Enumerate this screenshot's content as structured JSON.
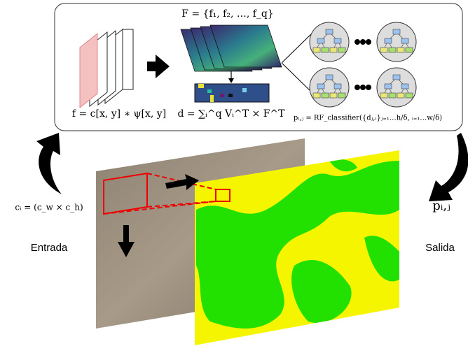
{
  "diagram": {
    "features": {
      "formula": "F = {f₁, f₂, …, f_q}"
    },
    "convolution": {
      "formula": "f = c[x, y] ∗ ψ[x, y]"
    },
    "descriptor": {
      "formula": "d = ∑ᵢ^q Vᵢ^T × F^T"
    },
    "classifier": {
      "formula": "pᵢ,ⱼ = RF_classifier({dⱼ,ᵢ}ⱼ₌₁…h/δ, ᵢ₌₁…w/δ)"
    },
    "input": {
      "size": "cᵢ = (c_w × c_h)",
      "label": "Entrada"
    },
    "output": {
      "symbol": "pᵢ,ⱼ",
      "label": "Salida"
    }
  }
}
